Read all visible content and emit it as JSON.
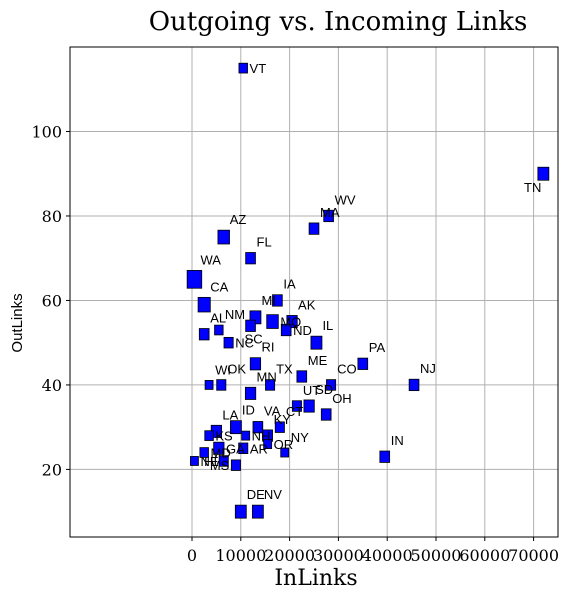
{
  "chart_data": {
    "type": "scatter",
    "title": "Outgoing vs. Incoming Links",
    "xlabel": "InLinks",
    "ylabel": "OutLinks",
    "xlim": [
      -2500,
      7500
    ],
    "ylim": [
      4,
      120
    ],
    "xticks": [
      0,
      1000,
      2000,
      3000,
      4000,
      5000,
      6000,
      7000
    ],
    "xtick_labels": [
      "0",
      "10000",
      "20000",
      "30000",
      "40000",
      "50000",
      "60000",
      "70000"
    ],
    "yticks": [
      20,
      40,
      60,
      80,
      100
    ],
    "grid": true,
    "marker_color": "#0000ff",
    "points": [
      {
        "label": "VT",
        "x": 1050,
        "y": 115,
        "size": 0.6,
        "label_pos": "right"
      },
      {
        "label": "TN",
        "x": 7200,
        "y": 90,
        "size": 1.0,
        "label_pos": "below-left"
      },
      {
        "label": "WV",
        "x": 2800,
        "y": 80,
        "size": 0.8,
        "label_pos": "above"
      },
      {
        "label": "MA",
        "x": 2500,
        "y": 77,
        "size": 0.8,
        "label_pos": "above"
      },
      {
        "label": "AZ",
        "x": 650,
        "y": 75,
        "size": 1.1,
        "label_pos": "above"
      },
      {
        "label": "FL",
        "x": 1200,
        "y": 70,
        "size": 0.8,
        "label_pos": "above"
      },
      {
        "label": "WA",
        "x": 50,
        "y": 65,
        "size": 1.6,
        "label_pos": "above"
      },
      {
        "label": "CA",
        "x": 250,
        "y": 59,
        "size": 1.2,
        "label_pos": "above"
      },
      {
        "label": "IA",
        "x": 1750,
        "y": 60,
        "size": 0.8,
        "label_pos": "above"
      },
      {
        "label": "AK",
        "x": 2050,
        "y": 55,
        "size": 0.9,
        "label_pos": "above"
      },
      {
        "label": "MI",
        "x": 1300,
        "y": 56,
        "size": 1.0,
        "label_pos": "above"
      },
      {
        "label": "MO",
        "x": 1650,
        "y": 55,
        "size": 1.1,
        "label_pos": "right"
      },
      {
        "label": "ND",
        "x": 1930,
        "y": 53,
        "size": 0.8,
        "label_pos": "right"
      },
      {
        "label": "AL",
        "x": 250,
        "y": 52,
        "size": 0.8,
        "label_pos": "above"
      },
      {
        "label": "NM",
        "x": 550,
        "y": 53,
        "size": 0.6,
        "label_pos": "above"
      },
      {
        "label": "SC",
        "x": 1200,
        "y": 54,
        "size": 0.8,
        "label_pos": "below"
      },
      {
        "label": "NC",
        "x": 750,
        "y": 50,
        "size": 0.7,
        "label_pos": "right"
      },
      {
        "label": "IL",
        "x": 2550,
        "y": 50,
        "size": 1.0,
        "label_pos": "above"
      },
      {
        "label": "RI",
        "x": 1300,
        "y": 45,
        "size": 0.9,
        "label_pos": "above"
      },
      {
        "label": "PA",
        "x": 3500,
        "y": 45,
        "size": 0.8,
        "label_pos": "above"
      },
      {
        "label": "ME",
        "x": 2250,
        "y": 42,
        "size": 0.8,
        "label_pos": "above"
      },
      {
        "label": "TX",
        "x": 1600,
        "y": 40,
        "size": 0.7,
        "label_pos": "above"
      },
      {
        "label": "MN",
        "x": 1200,
        "y": 38,
        "size": 0.9,
        "label_pos": "above"
      },
      {
        "label": "WI",
        "x": 350,
        "y": 40,
        "size": 0.5,
        "label_pos": "above"
      },
      {
        "label": "OK",
        "x": 600,
        "y": 40,
        "size": 0.7,
        "label_pos": "above"
      },
      {
        "label": "CO",
        "x": 2850,
        "y": 40,
        "size": 0.7,
        "label_pos": "above"
      },
      {
        "label": "NJ",
        "x": 4550,
        "y": 40,
        "size": 0.8,
        "label_pos": "above"
      },
      {
        "label": "UT",
        "x": 2150,
        "y": 35,
        "size": 0.7,
        "label_pos": "above"
      },
      {
        "label": "SD",
        "x": 2400,
        "y": 35,
        "size": 0.9,
        "label_pos": "above"
      },
      {
        "label": "OH",
        "x": 2750,
        "y": 33,
        "size": 0.8,
        "label_pos": "above"
      },
      {
        "label": "ID",
        "x": 900,
        "y": 30,
        "size": 1.0,
        "label_pos": "above"
      },
      {
        "label": "VA",
        "x": 1350,
        "y": 30,
        "size": 0.8,
        "label_pos": "above"
      },
      {
        "label": "CT",
        "x": 1800,
        "y": 30,
        "size": 0.7,
        "label_pos": "above"
      },
      {
        "label": "LA",
        "x": 500,
        "y": 29,
        "size": 0.9,
        "label_pos": "above"
      },
      {
        "label": "KY",
        "x": 1550,
        "y": 28,
        "size": 0.8,
        "label_pos": "above"
      },
      {
        "label": "NH",
        "x": 1100,
        "y": 28,
        "size": 0.5,
        "label_pos": "right"
      },
      {
        "label": "KS",
        "x": 350,
        "y": 28,
        "size": 0.6,
        "label_pos": "right"
      },
      {
        "label": "OR",
        "x": 1550,
        "y": 26,
        "size": 0.5,
        "label_pos": "right"
      },
      {
        "label": "NY",
        "x": 1900,
        "y": 24,
        "size": 0.5,
        "label_pos": "above"
      },
      {
        "label": "GA",
        "x": 550,
        "y": 25,
        "size": 0.9,
        "label_pos": "right"
      },
      {
        "label": "AR",
        "x": 1050,
        "y": 25,
        "size": 0.7,
        "label_pos": "right"
      },
      {
        "label": "IN",
        "x": 3950,
        "y": 23,
        "size": 0.8,
        "label_pos": "above"
      },
      {
        "label": "MD",
        "x": 250,
        "y": 24,
        "size": 0.6,
        "label_pos": "right"
      },
      {
        "label": "NE",
        "x": 50,
        "y": 22,
        "size": 0.5,
        "label_pos": "right"
      },
      {
        "label": "HI",
        "x": 650,
        "y": 22,
        "size": 0.7,
        "label_pos": "left"
      },
      {
        "label": "MS",
        "x": 900,
        "y": 21,
        "size": 0.7,
        "label_pos": "left"
      },
      {
        "label": "DE",
        "x": 1000,
        "y": 10,
        "size": 1.0,
        "label_pos": "above"
      },
      {
        "label": "NV",
        "x": 1350,
        "y": 10,
        "size": 1.0,
        "label_pos": "above"
      }
    ]
  }
}
